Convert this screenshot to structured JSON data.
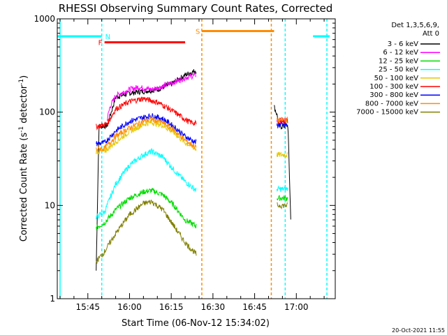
{
  "chart_data": {
    "type": "line",
    "title": "RHESSI Observing Summary Count Rates, Corrected",
    "xlabel": "Start Time (06-Nov-12 15:34:02)",
    "ylabel": "Corrected Count Rate (s-1 detector-1)",
    "ylabel_parts": {
      "pre": "Corrected Count Rate (s",
      "sup1": "-1",
      "mid": " detector",
      "sup2": "-1",
      "post": ")"
    },
    "yscale": "log",
    "ylim": [
      1,
      1000
    ],
    "y_ticks": [
      {
        "value": 1,
        "label": "1"
      },
      {
        "value": 10,
        "label": "10"
      },
      {
        "value": 100,
        "label": "100"
      },
      {
        "value": 1000,
        "label": "1000"
      }
    ],
    "xlim": [
      "15:34",
      "17:14"
    ],
    "x_ticks": [
      "15:45",
      "16:00",
      "16:15",
      "16:30",
      "16:45",
      "17:00"
    ],
    "footer_timestamp": "20-Oct-2021 11:55",
    "legend": {
      "placement": "top-right",
      "header": [
        "Det 1,3,5,6,9,",
        "Att 0"
      ]
    },
    "series": [
      {
        "name": "3 - 6 keV",
        "color": "#000000",
        "points": [
          [
            "15:48",
            2
          ],
          [
            "15:49",
            70
          ],
          [
            "15:52",
            72
          ],
          [
            "15:55",
            145
          ],
          [
            "16:00",
            160
          ],
          [
            "16:05",
            168
          ],
          [
            "16:10",
            175
          ],
          [
            "16:15",
            200
          ],
          [
            "16:20",
            250
          ],
          [
            "16:24",
            280
          ]
        ],
        "late": [
          [
            "16:52",
            115
          ],
          [
            "16:53",
            95
          ],
          [
            "16:54",
            70
          ],
          [
            "16:57",
            72
          ],
          [
            "16:58",
            7
          ]
        ]
      },
      {
        "name": "6 - 12 keV",
        "color": "#ff00ff",
        "points": [
          [
            "15:52",
            85
          ],
          [
            "15:53",
            115
          ],
          [
            "15:55",
            150
          ],
          [
            "16:00",
            175
          ],
          [
            "16:03",
            185
          ],
          [
            "16:08",
            175
          ],
          [
            "16:12",
            190
          ],
          [
            "16:17",
            215
          ],
          [
            "16:20",
            235
          ],
          [
            "16:24",
            250
          ]
        ],
        "late": [
          [
            "16:53",
            80
          ],
          [
            "16:57",
            82
          ]
        ]
      },
      {
        "name": "12 - 25 keV",
        "color": "#00dd00",
        "points": [
          [
            "15:48",
            5.8
          ],
          [
            "15:51",
            6.5
          ],
          [
            "15:55",
            9
          ],
          [
            "16:00",
            12
          ],
          [
            "16:05",
            14
          ],
          [
            "16:08",
            14.5
          ],
          [
            "16:12",
            13
          ],
          [
            "16:16",
            10
          ],
          [
            "16:20",
            7
          ],
          [
            "16:24",
            6
          ]
        ],
        "late": [
          [
            "16:53",
            12
          ],
          [
            "16:57",
            12
          ]
        ]
      },
      {
        "name": "25 - 50 keV",
        "color": "#00ffff",
        "points": [
          [
            "15:48",
            7.5
          ],
          [
            "15:51",
            8.5
          ],
          [
            "15:55",
            17
          ],
          [
            "16:00",
            27
          ],
          [
            "16:05",
            35
          ],
          [
            "16:08",
            38
          ],
          [
            "16:12",
            33
          ],
          [
            "16:16",
            24
          ],
          [
            "16:20",
            18
          ],
          [
            "16:24",
            14.5
          ]
        ],
        "late": [
          [
            "16:53",
            15
          ],
          [
            "16:57",
            15
          ]
        ]
      },
      {
        "name": "50 - 100 keV",
        "color": "#e6c800",
        "points": [
          [
            "15:48",
            38
          ],
          [
            "15:51",
            38
          ],
          [
            "15:55",
            48
          ],
          [
            "16:00",
            62
          ],
          [
            "16:05",
            74
          ],
          [
            "16:08",
            78
          ],
          [
            "16:12",
            72
          ],
          [
            "16:16",
            60
          ],
          [
            "16:20",
            47
          ],
          [
            "16:24",
            40
          ]
        ],
        "late": [
          [
            "16:53",
            35
          ],
          [
            "16:57",
            35
          ]
        ]
      },
      {
        "name": "100 - 300 keV",
        "color": "#ff0000",
        "points": [
          [
            "15:48",
            70
          ],
          [
            "15:52",
            75
          ],
          [
            "15:55",
            108
          ],
          [
            "16:00",
            130
          ],
          [
            "16:05",
            140
          ],
          [
            "16:10",
            128
          ],
          [
            "16:14",
            110
          ],
          [
            "16:18",
            92
          ],
          [
            "16:21",
            80
          ],
          [
            "16:24",
            75
          ]
        ],
        "late": [
          [
            "16:53",
            82
          ],
          [
            "16:57",
            80
          ]
        ]
      },
      {
        "name": "300 - 800 keV",
        "color": "#0000ff",
        "points": [
          [
            "15:48",
            46
          ],
          [
            "15:51",
            47
          ],
          [
            "15:55",
            63
          ],
          [
            "16:00",
            80
          ],
          [
            "16:05",
            88
          ],
          [
            "16:08",
            92
          ],
          [
            "16:12",
            85
          ],
          [
            "16:16",
            70
          ],
          [
            "16:20",
            55
          ],
          [
            "16:24",
            47
          ]
        ],
        "late": [
          [
            "16:53",
            73
          ],
          [
            "16:57",
            72
          ]
        ]
      },
      {
        "name": "800 - 7000 keV",
        "color": "#ff8c00",
        "points": [
          [
            "15:48",
            40
          ],
          [
            "15:51",
            41
          ],
          [
            "15:55",
            55
          ],
          [
            "16:00",
            68
          ],
          [
            "16:05",
            80
          ],
          [
            "16:08",
            84
          ],
          [
            "16:12",
            77
          ],
          [
            "16:16",
            64
          ],
          [
            "16:20",
            50
          ],
          [
            "16:24",
            42
          ]
        ],
        "late": [
          [
            "16:53",
            82
          ],
          [
            "16:57",
            83
          ]
        ]
      },
      {
        "name": "7000 - 15000 keV",
        "color": "#808000",
        "points": [
          [
            "15:48",
            2.5
          ],
          [
            "15:51",
            3.2
          ],
          [
            "15:55",
            5
          ],
          [
            "16:00",
            8
          ],
          [
            "16:05",
            10.5
          ],
          [
            "16:08",
            11
          ],
          [
            "16:12",
            9
          ],
          [
            "16:16",
            6
          ],
          [
            "16:20",
            4
          ],
          [
            "16:24",
            3
          ]
        ],
        "late": [
          [
            "16:53",
            10
          ],
          [
            "16:57",
            10
          ]
        ]
      }
    ],
    "annotations": {
      "flag_N": {
        "label": "N",
        "color": "#00ffff",
        "segments": [
          [
            "15:34",
            "15:50"
          ],
          [
            "17:06",
            "17:12"
          ]
        ],
        "level": 650,
        "vlines": [
          "15:35",
          "15:50",
          "16:56",
          "17:11"
        ]
      },
      "flag_F": {
        "label": "F",
        "color": "#ff0000",
        "segments": [
          [
            "15:51",
            "16:20"
          ]
        ],
        "level": 560
      },
      "flag_S": {
        "label": "S",
        "color": "#ff8c00",
        "segments": [
          [
            "16:26",
            "16:52"
          ]
        ],
        "level": 740,
        "vlines": [
          "16:26",
          "16:51"
        ]
      }
    }
  }
}
